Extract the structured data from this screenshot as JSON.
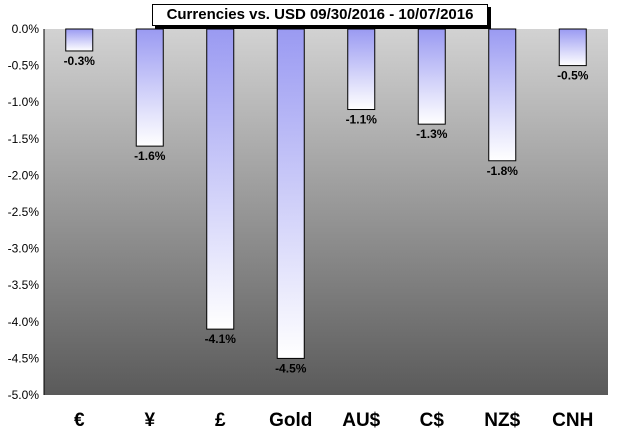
{
  "chart_data": {
    "type": "bar",
    "title": "Currencies vs. USD 09/30/2016 - 10/07/2016",
    "categories": [
      "€",
      "¥",
      "£",
      "Gold",
      "AU$",
      "C$",
      "NZ$",
      "CNH"
    ],
    "values": [
      -0.3,
      -1.6,
      -4.1,
      -4.5,
      -1.1,
      -1.3,
      -1.8,
      -0.5
    ],
    "data_labels": [
      "-0.3%",
      "-1.6%",
      "-4.1%",
      "-4.5%",
      "-1.1%",
      "-1.3%",
      "-1.8%",
      "-0.5%"
    ],
    "ylim": [
      -5.0,
      0.0
    ],
    "yticks": [
      "0.0%",
      "-0.5%",
      "-1.0%",
      "-1.5%",
      "-2.0%",
      "-2.5%",
      "-3.0%",
      "-3.5%",
      "-4.0%",
      "-4.5%",
      "-5.0%"
    ],
    "ytick_values": [
      0.0,
      -0.5,
      -1.0,
      -1.5,
      -2.0,
      -2.5,
      -3.0,
      -3.5,
      -4.0,
      -4.5,
      -5.0
    ],
    "xlabel": "",
    "ylabel": "",
    "grid": false,
    "legend": "none",
    "colors": {
      "plot_bg_top": "#d2d2d2",
      "plot_bg_bottom": "#5a5a5a",
      "bar_top": "#9a9af2",
      "bar_bottom": "#ffffff",
      "bar_outline": "#000000"
    }
  }
}
